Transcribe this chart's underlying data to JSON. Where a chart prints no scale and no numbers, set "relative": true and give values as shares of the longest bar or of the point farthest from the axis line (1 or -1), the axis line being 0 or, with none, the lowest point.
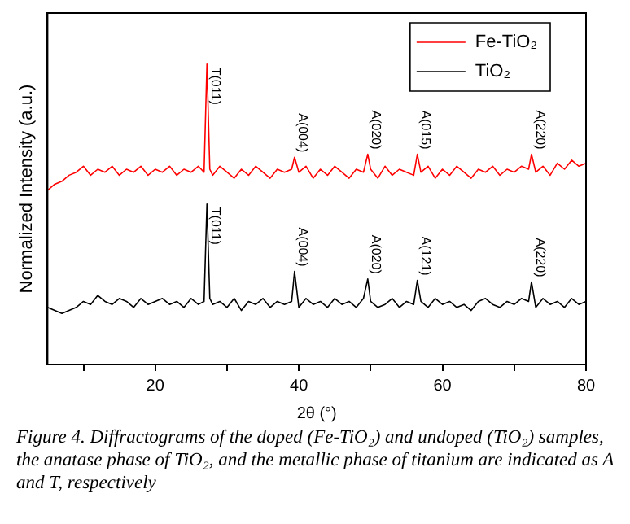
{
  "chart_data": {
    "type": "line",
    "relative": true,
    "xlabel": "2θ (°)",
    "ylabel": "Normalized Intensity (a.u.)",
    "xlim": [
      5,
      80
    ],
    "xticks": [
      {
        "value": 10,
        "label": null
      },
      20,
      {
        "value": 30,
        "label": null
      },
      40,
      {
        "value": 50,
        "label": null
      },
      60,
      {
        "value": 70,
        "label": null
      },
      80
    ],
    "grid": false,
    "legend": "top right",
    "marker": "none",
    "line_style": "solid",
    "series": [
      {
        "name": "Fe-TiO₂",
        "color": "#ff0000",
        "x": [
          5,
          6,
          7,
          8,
          9,
          10,
          11,
          12,
          13,
          14,
          15,
          16,
          17,
          18,
          19,
          20,
          21,
          22,
          23,
          24,
          25,
          26,
          26.8,
          27.2,
          27.6,
          28,
          29,
          30,
          31,
          32,
          33,
          34,
          35,
          36,
          37,
          38,
          39,
          39.4,
          40,
          41,
          42,
          43,
          44,
          45,
          46,
          47,
          48,
          49,
          49.6,
          50,
          51,
          52,
          53,
          54,
          55,
          56,
          56.5,
          57,
          58,
          59,
          60,
          61,
          62,
          63,
          64,
          65,
          66,
          67,
          68,
          69,
          70,
          71,
          72,
          72.4,
          73,
          74,
          75,
          76,
          77,
          78,
          79,
          80
        ],
        "values": [
          0.58,
          0.6,
          0.61,
          0.63,
          0.64,
          0.66,
          0.63,
          0.65,
          0.64,
          0.66,
          0.63,
          0.65,
          0.64,
          0.66,
          0.63,
          0.65,
          0.64,
          0.66,
          0.63,
          0.65,
          0.64,
          0.66,
          0.64,
          1,
          0.65,
          0.63,
          0.66,
          0.64,
          0.62,
          0.65,
          0.63,
          0.66,
          0.64,
          0.62,
          0.65,
          0.64,
          0.65,
          0.69,
          0.64,
          0.66,
          0.62,
          0.65,
          0.63,
          0.66,
          0.64,
          0.62,
          0.65,
          0.64,
          0.7,
          0.65,
          0.62,
          0.66,
          0.63,
          0.65,
          0.64,
          0.63,
          0.7,
          0.64,
          0.66,
          0.62,
          0.65,
          0.63,
          0.66,
          0.64,
          0.62,
          0.65,
          0.64,
          0.66,
          0.63,
          0.65,
          0.64,
          0.66,
          0.65,
          0.7,
          0.64,
          0.66,
          0.63,
          0.67,
          0.65,
          0.68,
          0.66,
          0.67
        ]
      },
      {
        "name": "TiO₂",
        "color": "#000000",
        "x": [
          5,
          6,
          7,
          8,
          9,
          10,
          11,
          12,
          13,
          14,
          15,
          16,
          17,
          18,
          19,
          20,
          21,
          22,
          23,
          24,
          25,
          26,
          26.8,
          27.2,
          27.6,
          28,
          29,
          30,
          31,
          32,
          33,
          34,
          35,
          36,
          37,
          38,
          39,
          39.4,
          40,
          41,
          42,
          43,
          44,
          45,
          46,
          47,
          48,
          49,
          49.6,
          50,
          51,
          52,
          53,
          54,
          55,
          56,
          56.5,
          57,
          58,
          59,
          60,
          61,
          62,
          63,
          64,
          65,
          66,
          67,
          68,
          69,
          70,
          71,
          72,
          72.4,
          73,
          74,
          75,
          76,
          77,
          78,
          79,
          80
        ],
        "values": [
          0.19,
          0.18,
          0.17,
          0.18,
          0.19,
          0.21,
          0.2,
          0.23,
          0.21,
          0.2,
          0.22,
          0.21,
          0.19,
          0.22,
          0.2,
          0.21,
          0.22,
          0.2,
          0.21,
          0.19,
          0.22,
          0.2,
          0.21,
          0.534,
          0.22,
          0.2,
          0.21,
          0.19,
          0.22,
          0.18,
          0.21,
          0.2,
          0.22,
          0.19,
          0.21,
          0.2,
          0.21,
          0.31,
          0.19,
          0.22,
          0.2,
          0.21,
          0.19,
          0.22,
          0.2,
          0.21,
          0.19,
          0.22,
          0.285,
          0.21,
          0.19,
          0.2,
          0.22,
          0.19,
          0.21,
          0.2,
          0.28,
          0.21,
          0.19,
          0.22,
          0.2,
          0.21,
          0.19,
          0.2,
          0.18,
          0.21,
          0.22,
          0.2,
          0.19,
          0.21,
          0.2,
          0.22,
          0.21,
          0.275,
          0.19,
          0.22,
          0.2,
          0.21,
          0.19,
          0.22,
          0.2,
          0.21
        ]
      }
    ],
    "annotations": [
      {
        "text": "T(011)",
        "x": 27.2,
        "y": 1
      },
      {
        "text": "A(004)",
        "x": 39.4,
        "y": 0.69
      },
      {
        "text": "A(020)",
        "x": 49.6,
        "y": 0.7
      },
      {
        "text": "A(015)",
        "x": 56.5,
        "y": 0.7
      },
      {
        "text": "A(220)",
        "x": 72.4,
        "y": 0.7
      },
      {
        "text": "T(011)",
        "x": 27.2,
        "y": 0.534
      },
      {
        "text": "A(004)",
        "x": 39.4,
        "y": 0.31
      },
      {
        "text": "A(020)",
        "x": 49.6,
        "y": 0.285
      },
      {
        "text": "A(121)",
        "x": 56.5,
        "y": 0.28
      },
      {
        "text": "A(220)",
        "x": 72.4,
        "y": 0.275
      },
      "Figure 4. Diffractograms of the doped (Fe-TiO₂) and undoped (TiO₂) samples, the anatase phase of TiO₂, and the metallic phase of titanium are indicated as A and T, respectively"
    ]
  }
}
